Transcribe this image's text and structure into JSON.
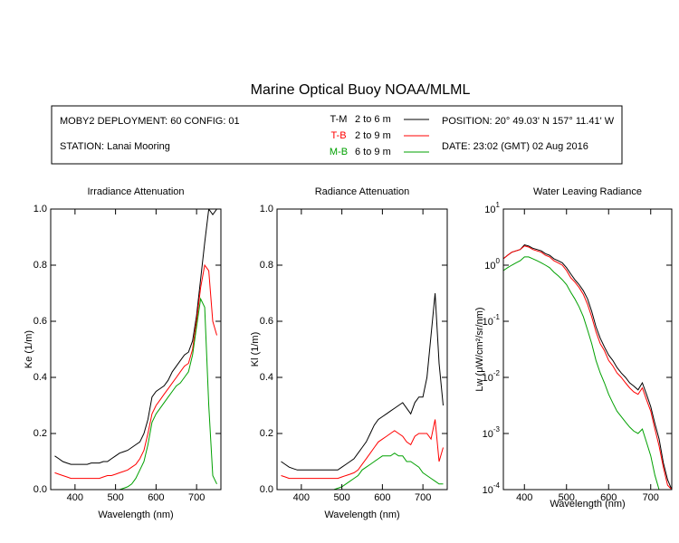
{
  "header": {
    "title": "Marine Optical Buoy NOAA/MLML",
    "deployment": "MOBY2 DEPLOYMENT: 60 CONFIG: 01",
    "station": "STATION: Lanai Mooring",
    "position": "POSITION: 20° 49.03' N   157° 11.41' W",
    "date": "DATE: 23:02 (GMT) 02 Aug 2016",
    "legend": [
      {
        "label": "T-M",
        "range": "2 to 6  m",
        "color": "#000000"
      },
      {
        "label": "T-B",
        "range": "2 to 9  m",
        "color": "#ff0000"
      },
      {
        "label": "M-B",
        "range": "6 to 9  m",
        "color": "#00a000"
      }
    ]
  },
  "chart_data": [
    {
      "type": "line",
      "title": "Irradiance Attenuation",
      "x_label": "Wavelength (nm)",
      "y_label": "Ke  (1/m)",
      "xlim": [
        340,
        760
      ],
      "xticks": [
        400,
        500,
        600,
        700
      ],
      "ylim": [
        0,
        1
      ],
      "yticks": [
        {
          "value": 0,
          "label": "0.0"
        },
        0.2,
        0.4,
        0.6,
        0.8,
        {
          "value": 1,
          "label": "1.0"
        }
      ],
      "x": [
        350,
        360,
        370,
        380,
        390,
        400,
        410,
        420,
        430,
        440,
        450,
        460,
        470,
        480,
        490,
        500,
        510,
        520,
        530,
        540,
        550,
        560,
        570,
        580,
        590,
        600,
        610,
        620,
        630,
        640,
        650,
        660,
        670,
        680,
        690,
        700,
        710,
        720,
        730,
        740,
        750
      ],
      "series": [
        {
          "color": "#000000",
          "values": [
            0.12,
            0.11,
            0.1,
            0.095,
            0.09,
            0.09,
            0.09,
            0.09,
            0.09,
            0.095,
            0.095,
            0.095,
            0.1,
            0.1,
            0.11,
            0.12,
            0.13,
            0.135,
            0.14,
            0.15,
            0.16,
            0.17,
            0.2,
            0.25,
            0.33,
            0.35,
            0.36,
            0.37,
            0.39,
            0.42,
            0.44,
            0.46,
            0.48,
            0.49,
            0.53,
            0.62,
            0.75,
            0.88,
            1.0,
            0.98,
            1.0
          ]
        },
        {
          "color": "#ff0000",
          "values": [
            0.06,
            0.055,
            0.05,
            0.045,
            0.04,
            0.04,
            0.04,
            0.04,
            0.04,
            0.04,
            0.04,
            0.04,
            0.045,
            0.05,
            0.05,
            0.055,
            0.06,
            0.065,
            0.07,
            0.08,
            0.09,
            0.11,
            0.14,
            0.2,
            0.27,
            0.3,
            0.32,
            0.34,
            0.36,
            0.38,
            0.4,
            0.42,
            0.44,
            0.45,
            0.5,
            0.6,
            0.72,
            0.8,
            0.78,
            0.6,
            0.55
          ]
        },
        {
          "color": "#00a000",
          "values": [
            0,
            0,
            0,
            0,
            0,
            0,
            0,
            0,
            0,
            0,
            0,
            0,
            0,
            0,
            0,
            0,
            0,
            0.005,
            0.01,
            0.02,
            0.04,
            0.07,
            0.1,
            0.16,
            0.24,
            0.27,
            0.29,
            0.31,
            0.33,
            0.35,
            0.37,
            0.38,
            0.4,
            0.42,
            0.48,
            0.58,
            0.68,
            0.65,
            0.3,
            0.05,
            0.02
          ]
        }
      ]
    },
    {
      "type": "line",
      "title": "Radiance Attenuation",
      "x_label": "Wavelength (nm)",
      "y_label": "Kl  (1/m)",
      "xlim": [
        340,
        760
      ],
      "xticks": [
        400,
        500,
        600,
        700
      ],
      "ylim": [
        0,
        1
      ],
      "yticks": [
        {
          "value": 0,
          "label": "0.0"
        },
        0.2,
        0.4,
        0.6,
        0.8,
        {
          "value": 1,
          "label": "1.0"
        }
      ],
      "x": [
        350,
        360,
        370,
        380,
        390,
        400,
        410,
        420,
        430,
        440,
        450,
        460,
        470,
        480,
        490,
        500,
        510,
        520,
        530,
        540,
        550,
        560,
        570,
        580,
        590,
        600,
        610,
        620,
        630,
        640,
        650,
        660,
        670,
        680,
        690,
        700,
        710,
        720,
        730,
        740,
        750
      ],
      "series": [
        {
          "color": "#000000",
          "values": [
            0.1,
            0.09,
            0.08,
            0.075,
            0.07,
            0.07,
            0.07,
            0.07,
            0.07,
            0.07,
            0.07,
            0.07,
            0.07,
            0.07,
            0.07,
            0.08,
            0.09,
            0.1,
            0.11,
            0.13,
            0.15,
            0.17,
            0.2,
            0.23,
            0.25,
            0.26,
            0.27,
            0.28,
            0.29,
            0.3,
            0.31,
            0.29,
            0.27,
            0.31,
            0.33,
            0.33,
            0.4,
            0.55,
            0.7,
            0.45,
            0.3
          ]
        },
        {
          "color": "#ff0000",
          "values": [
            0.05,
            0.045,
            0.04,
            0.04,
            0.04,
            0.04,
            0.04,
            0.04,
            0.04,
            0.04,
            0.04,
            0.04,
            0.04,
            0.04,
            0.04,
            0.045,
            0.05,
            0.055,
            0.06,
            0.07,
            0.09,
            0.11,
            0.13,
            0.15,
            0.17,
            0.18,
            0.19,
            0.2,
            0.21,
            0.2,
            0.19,
            0.17,
            0.16,
            0.19,
            0.2,
            0.2,
            0.2,
            0.18,
            0.25,
            0.1,
            0.15
          ]
        },
        {
          "color": "#00a000",
          "values": [
            0,
            0,
            0,
            0,
            0,
            0,
            0,
            0,
            0,
            0,
            0,
            0,
            0,
            0,
            0.005,
            0.01,
            0.02,
            0.03,
            0.04,
            0.05,
            0.07,
            0.08,
            0.09,
            0.1,
            0.11,
            0.12,
            0.12,
            0.12,
            0.13,
            0.12,
            0.12,
            0.1,
            0.1,
            0.09,
            0.08,
            0.06,
            0.05,
            0.04,
            0.03,
            0.02,
            0.02
          ]
        }
      ]
    },
    {
      "type": "line",
      "title": "Water Leaving Radiance",
      "x_label": "Wavelength (nm)",
      "y_label": "Lw  (μW/cm²/sr/nm)",
      "log_y": true,
      "xlim": [
        350,
        750
      ],
      "xticks": [
        400,
        500,
        600,
        700
      ],
      "ylim": [
        0.0001,
        10
      ],
      "yticks": [
        {
          "value": 0.0001,
          "label": "10",
          "exponent": "-4"
        },
        {
          "value": 0.001,
          "label": "10",
          "exponent": "-3"
        },
        {
          "value": 0.01,
          "label": "10",
          "exponent": "-2"
        },
        {
          "value": 0.1,
          "label": "10",
          "exponent": "-1"
        },
        {
          "value": 1,
          "label": "10",
          "exponent": "0"
        },
        {
          "value": 10,
          "label": "10",
          "exponent": "1"
        }
      ],
      "x": [
        350,
        360,
        370,
        380,
        390,
        400,
        410,
        420,
        430,
        440,
        450,
        460,
        470,
        480,
        490,
        500,
        510,
        520,
        530,
        540,
        550,
        560,
        570,
        580,
        590,
        600,
        610,
        620,
        630,
        640,
        650,
        660,
        670,
        680,
        690,
        700,
        710,
        720,
        730,
        740,
        750
      ],
      "series": [
        {
          "color": "#000000",
          "values": [
            1.3,
            1.5,
            1.7,
            1.8,
            1.9,
            2.3,
            2.2,
            2.0,
            1.9,
            1.8,
            1.6,
            1.5,
            1.3,
            1.2,
            1.1,
            0.9,
            0.7,
            0.55,
            0.45,
            0.35,
            0.25,
            0.15,
            0.08,
            0.05,
            0.035,
            0.025,
            0.02,
            0.015,
            0.012,
            0.01,
            0.008,
            0.007,
            0.006,
            0.008,
            0.005,
            0.003,
            0.0015,
            0.0008,
            0.0003,
            0.00015,
            0.0001
          ]
        },
        {
          "color": "#ff0000",
          "values": [
            1.3,
            1.5,
            1.7,
            1.8,
            1.9,
            2.2,
            2.1,
            1.9,
            1.8,
            1.7,
            1.5,
            1.4,
            1.2,
            1.1,
            1.0,
            0.8,
            0.6,
            0.5,
            0.4,
            0.3,
            0.2,
            0.12,
            0.065,
            0.04,
            0.03,
            0.02,
            0.016,
            0.012,
            0.01,
            0.008,
            0.0065,
            0.0055,
            0.005,
            0.0065,
            0.004,
            0.0025,
            0.0012,
            0.0006,
            0.00025,
            0.00012,
            0.0001
          ]
        },
        {
          "color": "#00a000",
          "values": [
            0.8,
            0.9,
            1.0,
            1.1,
            1.2,
            1.4,
            1.4,
            1.3,
            1.2,
            1.1,
            1.0,
            0.9,
            0.75,
            0.65,
            0.55,
            0.45,
            0.33,
            0.25,
            0.18,
            0.12,
            0.07,
            0.04,
            0.02,
            0.012,
            0.008,
            0.005,
            0.0035,
            0.0025,
            0.002,
            0.0016,
            0.0013,
            0.0011,
            0.001,
            0.0012,
            0.0007,
            0.0004,
            0.00018,
            0.0001,
            null,
            null,
            null
          ]
        }
      ]
    }
  ]
}
